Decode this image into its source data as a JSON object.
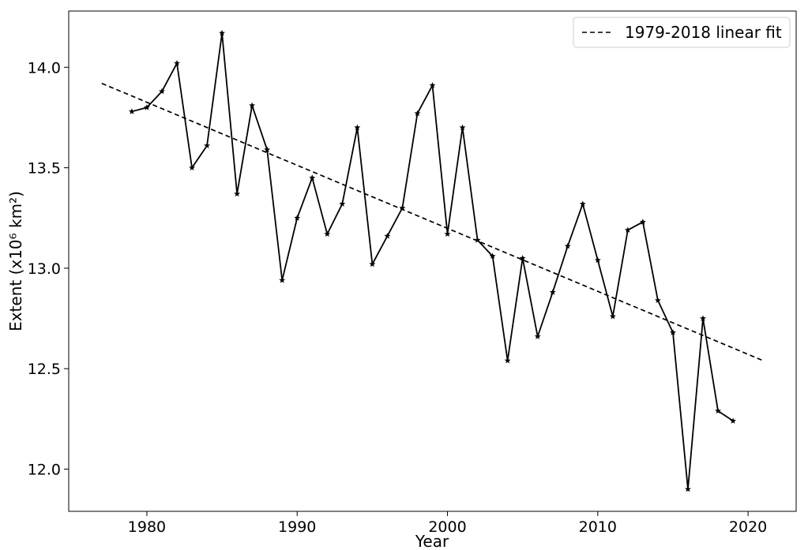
{
  "chart_data": {
    "type": "line",
    "title": "",
    "xlabel": "Year",
    "ylabel": "Extent (x10⁶ km²)",
    "xlim": [
      1974.8,
      2023.2
    ],
    "ylim": [
      11.79,
      14.28
    ],
    "xticks": [
      1980,
      1990,
      2000,
      2010,
      2020
    ],
    "yticks": [
      12.0,
      12.5,
      13.0,
      13.5,
      14.0
    ],
    "xtick_labels": [
      "1980",
      "1990",
      "2000",
      "2010",
      "2020"
    ],
    "ytick_labels": [
      "12.0",
      "12.5",
      "13.0",
      "13.5",
      "14.0"
    ],
    "grid": false,
    "legend_position": "top-right",
    "series": [
      {
        "style": "solid line with star markers",
        "color": "#000000",
        "x": [
          1979,
          1980,
          1981,
          1982,
          1983,
          1984,
          1985,
          1986,
          1987,
          1988,
          1989,
          1990,
          1991,
          1992,
          1993,
          1994,
          1995,
          1996,
          1997,
          1998,
          1999,
          2000,
          2001,
          2002,
          2003,
          2004,
          2005,
          2006,
          2007,
          2008,
          2009,
          2010,
          2011,
          2012,
          2013,
          2014,
          2015,
          2016,
          2017,
          2018,
          2019
        ],
        "values": [
          13.78,
          13.8,
          13.88,
          14.02,
          13.5,
          13.61,
          14.17,
          13.37,
          13.81,
          13.59,
          12.94,
          13.25,
          13.45,
          13.17,
          13.32,
          13.7,
          13.02,
          13.16,
          13.3,
          13.77,
          13.91,
          13.17,
          13.7,
          13.14,
          13.06,
          12.54,
          13.05,
          12.66,
          12.88,
          13.11,
          13.32,
          13.04,
          12.76,
          13.19,
          13.23,
          12.84,
          12.68,
          11.9,
          12.75,
          12.29,
          12.24
        ]
      },
      {
        "name": "1979-2018 linear fit",
        "style": "dashed",
        "color": "#000000",
        "x": [
          1977,
          2021
        ],
        "values": [
          13.92,
          12.54
        ]
      }
    ]
  }
}
